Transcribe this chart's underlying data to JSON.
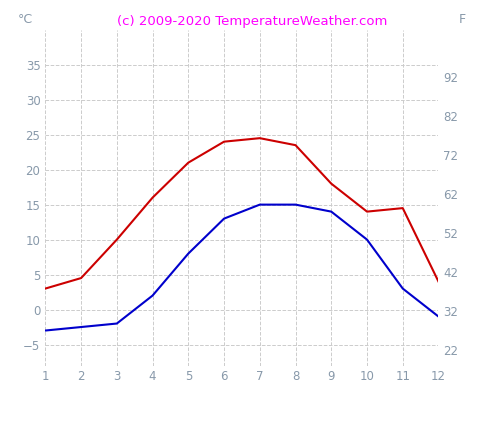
{
  "months": [
    1,
    2,
    3,
    4,
    5,
    6,
    7,
    8,
    9,
    10,
    11,
    12
  ],
  "red_line": [
    3.0,
    4.5,
    10.0,
    16.0,
    21.0,
    24.0,
    24.5,
    23.5,
    18.0,
    14.0,
    14.5,
    4.0
  ],
  "blue_line": [
    -3.0,
    -2.5,
    -2.0,
    2.0,
    8.0,
    13.0,
    15.0,
    15.0,
    14.0,
    10.0,
    3.0,
    -1.0
  ],
  "red_color": "#cc0000",
  "blue_color": "#0000cc",
  "title": "(c) 2009-2020 TemperatureWeather.com",
  "title_color": "#ff00ff",
  "ylabel_left": "°C",
  "ylabel_right": "F",
  "ylim_left": [
    -8,
    40
  ],
  "ylim_right": [
    18,
    104
  ],
  "yticks_left": [
    -5,
    0,
    5,
    10,
    15,
    20,
    25,
    30,
    35
  ],
  "yticks_right": [
    22,
    32,
    42,
    52,
    62,
    72,
    82,
    92
  ],
  "xticks": [
    1,
    2,
    3,
    4,
    5,
    6,
    7,
    8,
    9,
    10,
    11,
    12
  ],
  "tick_color": "#8899aa",
  "grid_color": "#cccccc",
  "background_color": "#ffffff",
  "linewidth": 1.5,
  "title_fontsize": 9.5,
  "axis_label_fontsize": 9,
  "tick_fontsize": 8.5
}
